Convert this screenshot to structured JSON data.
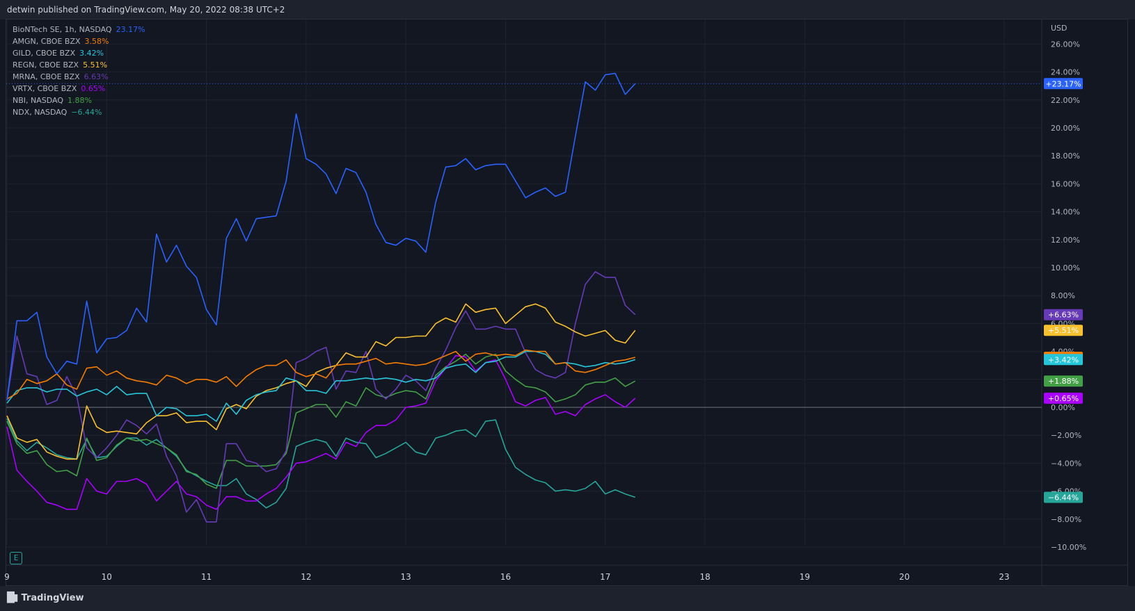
{
  "header": {
    "publish_text": "detwin published on TradingView.com, May 20, 2022 08:38 UTC+2"
  },
  "footer": {
    "brand": "TradingView",
    "badge": "E"
  },
  "chart_data": {
    "type": "line",
    "currency_label": "USD",
    "y_ticks": [
      "26.00%",
      "24.00%",
      "22.00%",
      "20.00%",
      "18.00%",
      "16.00%",
      "14.00%",
      "12.00%",
      "10.00%",
      "8.00%",
      "6.00%",
      "4.00%",
      "2.00%",
      "0.00%",
      "−2.00%",
      "−4.00%",
      "−6.00%",
      "−8.00%",
      "−10.00%"
    ],
    "y_tick_values": [
      26,
      24,
      22,
      20,
      18,
      16,
      14,
      12,
      10,
      8,
      6,
      4,
      2,
      0,
      -2,
      -4,
      -6,
      -8,
      -10
    ],
    "x_tick_labels": [
      "9",
      "10",
      "11",
      "12",
      "13",
      "16",
      "17",
      "18",
      "19",
      "20",
      "23"
    ],
    "x_tick_index": [
      0,
      10,
      20,
      30,
      40,
      50,
      60,
      70,
      80,
      90,
      100
    ],
    "grid": true,
    "zero_line": 0,
    "series": [
      {
        "name": "BioNTech SE, 1h, NASDAQ",
        "legend_value": "23.17%",
        "label": "+23.17%",
        "color": "#2962ff",
        "values": [
          0.5,
          6.2,
          6.2,
          6.8,
          3.6,
          2.4,
          3.3,
          3.1,
          7.6,
          3.9,
          4.9,
          5.0,
          5.5,
          7.1,
          6.1,
          12.4,
          10.4,
          11.6,
          10.1,
          9.3,
          7.0,
          5.9,
          12.1,
          13.5,
          11.9,
          13.5,
          13.6,
          13.7,
          16.2,
          21.0,
          17.8,
          17.4,
          16.7,
          15.3,
          17.1,
          16.8,
          15.4,
          13.1,
          11.8,
          11.6,
          12.1,
          11.9,
          11.1,
          14.7,
          17.2,
          17.3,
          17.8,
          17.0,
          17.3,
          17.4,
          17.4,
          16.2,
          15.0,
          15.4,
          15.7,
          15.1,
          15.4,
          19.4,
          23.3,
          22.7,
          23.8,
          23.9,
          22.4,
          23.17
        ]
      },
      {
        "name": "AMGN, CBOE BZX",
        "legend_value": "3.58%",
        "label": "+3.58%",
        "color": "#f57c00",
        "values": [
          0.6,
          1.0,
          2.0,
          1.7,
          1.9,
          2.4,
          1.6,
          1.3,
          2.8,
          2.9,
          2.3,
          2.6,
          2.1,
          1.9,
          1.8,
          1.6,
          2.3,
          2.1,
          1.7,
          2.0,
          2.0,
          1.8,
          2.2,
          1.5,
          2.2,
          2.7,
          3.0,
          3.0,
          3.4,
          2.5,
          2.2,
          2.4,
          2.1,
          3.0,
          3.1,
          3.1,
          3.3,
          3.5,
          3.1,
          3.2,
          3.1,
          3.0,
          3.1,
          3.4,
          3.7,
          4.0,
          3.3,
          3.8,
          3.9,
          3.7,
          3.8,
          3.7,
          4.1,
          4.0,
          4.0,
          3.1,
          3.2,
          2.6,
          2.5,
          2.7,
          3.0,
          3.3,
          3.4,
          3.58
        ]
      },
      {
        "name": "GILD, CBOE BZX",
        "legend_value": "3.42%",
        "label": "+3.42%",
        "color": "#26c6da",
        "values": [
          0.3,
          1.2,
          1.4,
          1.4,
          1.1,
          1.3,
          1.3,
          0.8,
          1.1,
          1.3,
          0.9,
          1.5,
          0.9,
          1.0,
          1.0,
          -0.6,
          0.0,
          -0.1,
          -0.6,
          -0.6,
          -0.5,
          -1.0,
          0.3,
          -0.5,
          0.5,
          0.9,
          1.1,
          1.2,
          2.1,
          1.9,
          1.2,
          1.2,
          1.0,
          1.9,
          1.9,
          2.0,
          2.1,
          2.0,
          2.1,
          2.0,
          1.8,
          2.0,
          1.9,
          2.1,
          2.8,
          3.0,
          3.1,
          2.5,
          3.2,
          3.3,
          3.6,
          3.6,
          4.0,
          4.0,
          3.8,
          3.1,
          3.2,
          3.1,
          2.9,
          3.0,
          3.2,
          3.1,
          3.2,
          3.42
        ]
      },
      {
        "name": "REGN, CBOE BZX",
        "legend_value": "5.51%",
        "label": "+5.51%",
        "color": "#fbc02d",
        "values": [
          -0.6,
          -2.2,
          -2.5,
          -2.3,
          -3.2,
          -3.5,
          -3.7,
          -3.7,
          0.1,
          -1.4,
          -1.8,
          -1.7,
          -1.8,
          -1.9,
          -1.1,
          -0.6,
          -0.6,
          -0.4,
          -1.1,
          -1.0,
          -1.0,
          -1.6,
          -0.1,
          0.2,
          -0.1,
          0.8,
          1.2,
          1.4,
          1.7,
          1.9,
          1.5,
          2.5,
          2.8,
          3.0,
          3.9,
          3.6,
          3.6,
          4.7,
          4.4,
          5.0,
          5.0,
          5.1,
          5.1,
          6.0,
          6.4,
          6.1,
          7.4,
          6.8,
          7.0,
          7.1,
          6.0,
          6.6,
          7.2,
          7.4,
          7.1,
          6.1,
          5.8,
          5.4,
          5.1,
          5.3,
          5.5,
          4.8,
          4.6,
          5.51
        ]
      },
      {
        "name": "MRNA, CBOE BZX",
        "legend_value": "6.63%",
        "label": "+6.63%",
        "color": "#673ab7",
        "values": [
          0.5,
          5.1,
          2.4,
          2.2,
          0.2,
          0.5,
          2.2,
          0.8,
          -2.9,
          -3.6,
          -2.9,
          -2.0,
          -0.9,
          -1.3,
          -1.9,
          -1.2,
          -3.5,
          -4.9,
          -7.5,
          -6.6,
          -8.2,
          -8.2,
          -2.6,
          -2.6,
          -3.8,
          -4.0,
          -4.6,
          -4.4,
          -3.1,
          3.2,
          3.5,
          4.0,
          4.3,
          1.3,
          2.6,
          2.5,
          4.0,
          1.3,
          0.6,
          1.3,
          2.3,
          1.9,
          1.2,
          2.8,
          4.1,
          5.7,
          6.9,
          5.6,
          5.6,
          5.8,
          5.6,
          5.6,
          3.9,
          2.7,
          2.3,
          2.1,
          2.5,
          6.0,
          8.8,
          9.7,
          9.3,
          9.3,
          7.3,
          6.63
        ]
      },
      {
        "name": "VRTX, CBOE BZX",
        "legend_value": "0.65%",
        "label": "+0.65%",
        "color": "#aa00ff",
        "values": [
          -1.4,
          -4.5,
          -5.3,
          -6.0,
          -6.8,
          -7.0,
          -7.3,
          -7.3,
          -5.1,
          -6.0,
          -6.2,
          -5.3,
          -5.3,
          -5.1,
          -5.5,
          -6.7,
          -6.0,
          -5.3,
          -6.2,
          -6.4,
          -7.0,
          -7.3,
          -6.4,
          -6.4,
          -6.7,
          -6.7,
          -6.2,
          -5.8,
          -5.0,
          -4.0,
          -3.9,
          -3.6,
          -3.3,
          -3.7,
          -2.5,
          -2.8,
          -1.8,
          -1.3,
          -1.3,
          -0.9,
          0.0,
          0.1,
          0.3,
          1.9,
          2.8,
          3.7,
          3.6,
          2.6,
          3.2,
          3.4,
          2.0,
          0.4,
          0.1,
          0.5,
          0.7,
          -0.5,
          -0.3,
          -0.6,
          0.2,
          0.6,
          0.9,
          0.4,
          0.0,
          0.65
        ]
      },
      {
        "name": "NBI, NASDAQ",
        "legend_value": "1.88%",
        "label": "+1.88%",
        "color": "#43a047",
        "values": [
          -1.0,
          -2.6,
          -3.3,
          -3.1,
          -4.1,
          -4.6,
          -4.5,
          -4.9,
          -2.2,
          -3.8,
          -3.6,
          -2.7,
          -2.2,
          -2.4,
          -2.3,
          -2.6,
          -2.9,
          -3.4,
          -4.6,
          -4.8,
          -5.5,
          -5.8,
          -3.8,
          -3.8,
          -4.2,
          -4.2,
          -4.2,
          -4.1,
          -3.3,
          -0.4,
          -0.1,
          0.2,
          0.2,
          -0.7,
          0.4,
          0.1,
          1.4,
          0.9,
          0.7,
          1.0,
          1.2,
          1.1,
          0.6,
          2.3,
          2.9,
          3.3,
          3.8,
          3.1,
          3.6,
          3.8,
          2.6,
          2.0,
          1.5,
          1.4,
          1.1,
          0.4,
          0.6,
          0.9,
          1.6,
          1.8,
          1.8,
          2.1,
          1.5,
          1.88
        ]
      },
      {
        "name": "NDX, NASDAQ",
        "legend_value": "−6.44%",
        "label": "−6.44%",
        "color": "#26a69a",
        "values": [
          -0.8,
          -2.4,
          -3.1,
          -2.5,
          -2.9,
          -3.4,
          -3.6,
          -3.7,
          -2.3,
          -3.6,
          -3.5,
          -2.8,
          -2.2,
          -2.2,
          -2.7,
          -2.3,
          -2.9,
          -3.5,
          -4.5,
          -4.9,
          -5.3,
          -5.6,
          -5.6,
          -5.1,
          -6.2,
          -6.6,
          -7.2,
          -6.8,
          -5.8,
          -2.8,
          -2.5,
          -2.3,
          -2.5,
          -3.5,
          -2.2,
          -2.5,
          -2.6,
          -3.6,
          -3.3,
          -2.9,
          -2.5,
          -3.2,
          -3.4,
          -2.2,
          -2.0,
          -1.7,
          -1.6,
          -2.1,
          -1.0,
          -0.9,
          -3.0,
          -4.3,
          -4.8,
          -5.2,
          -5.4,
          -6.0,
          -5.9,
          -6.0,
          -5.8,
          -5.3,
          -6.2,
          -5.9,
          -6.2,
          -6.44
        ]
      }
    ]
  }
}
